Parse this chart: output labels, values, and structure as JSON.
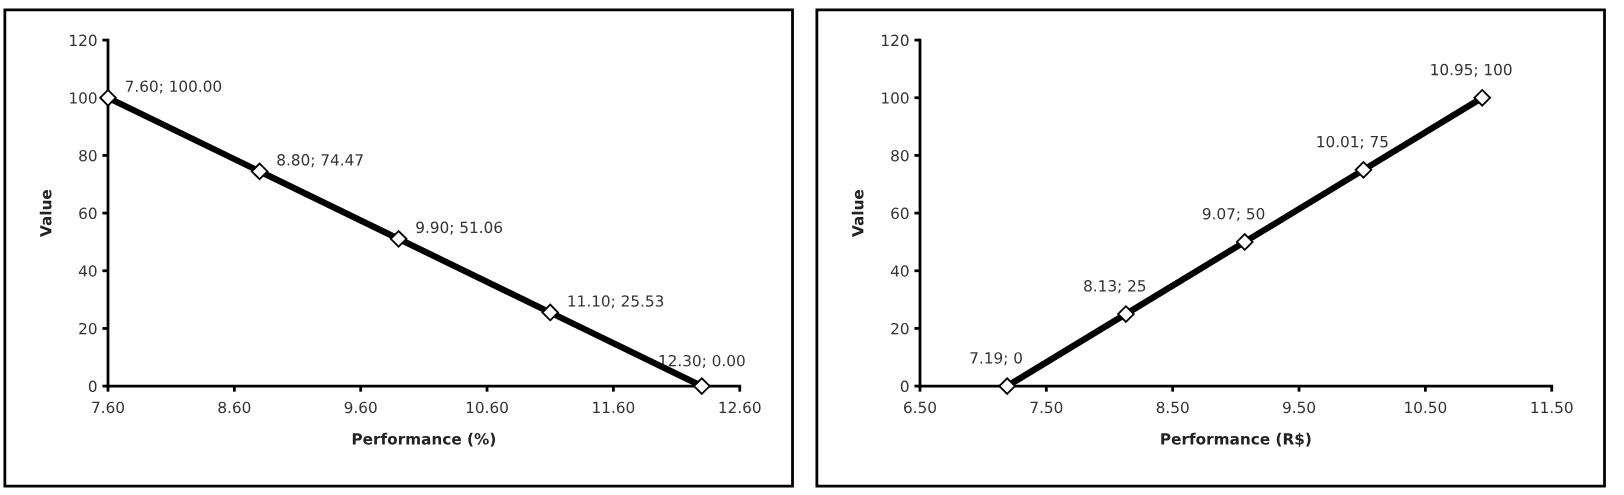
{
  "chart_data": [
    {
      "type": "line",
      "xlabel": "Performance (%)",
      "ylabel": "Value",
      "x": [
        7.6,
        8.8,
        9.9,
        11.1,
        12.3
      ],
      "series": [
        {
          "color": "#000000",
          "values": [
            100,
            74.47,
            51.06,
            25.53,
            0
          ],
          "value_labels": [
            "7.60; 100.00",
            "8.80; 74.47",
            "9.90; 51.06",
            "11.10; 25.53",
            "12.30; 0.00"
          ]
        }
      ],
      "xlim": [
        7.6,
        12.6
      ],
      "xticks": [
        {
          "value": 7.6,
          "label": "7.60"
        },
        {
          "value": 8.6,
          "label": "8.60"
        },
        {
          "value": 9.6,
          "label": "9.60"
        },
        {
          "value": 10.6,
          "label": "10.60"
        },
        {
          "value": 11.6,
          "label": "11.60"
        },
        {
          "value": 12.6,
          "label": "12.60"
        }
      ],
      "ylim": [
        0,
        120
      ],
      "yticks": [
        0,
        20,
        40,
        60,
        80,
        100,
        120
      ],
      "marker": "diamond",
      "line_style": "solid",
      "grid": false,
      "legend": false
    },
    {
      "type": "line",
      "xlabel": "Performance (R$)",
      "ylabel": "Value",
      "x": [
        7.19,
        8.13,
        9.07,
        10.01,
        10.95
      ],
      "series": [
        {
          "color": "#000000",
          "values": [
            0,
            25,
            50,
            75,
            100
          ],
          "value_labels": [
            "7.19; 0",
            "8.13; 25",
            "9.07; 50",
            "10.01; 75",
            "10.95; 100"
          ]
        }
      ],
      "xlim": [
        6.5,
        11.5
      ],
      "xticks": [
        {
          "value": 6.5,
          "label": "6.50"
        },
        {
          "value": 7.5,
          "label": "7.50"
        },
        {
          "value": 8.5,
          "label": "8.50"
        },
        {
          "value": 9.5,
          "label": "9.50"
        },
        {
          "value": 10.5,
          "label": "10.50"
        },
        {
          "value": 11.5,
          "label": "11.50"
        }
      ],
      "ylim": [
        0,
        120
      ],
      "yticks": [
        0,
        20,
        40,
        60,
        80,
        100,
        120
      ],
      "marker": "diamond",
      "line_style": "solid",
      "grid": false,
      "legend": false
    }
  ]
}
